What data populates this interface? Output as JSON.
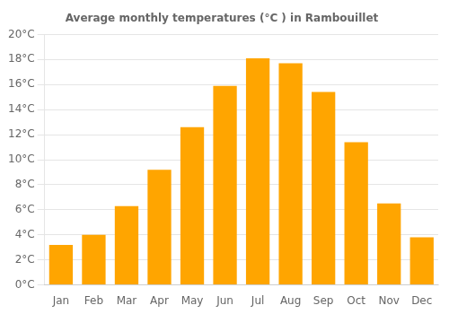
{
  "chart_data": {
    "type": "bar",
    "title": "Average monthly temperatures (°C ) in Rambouillet",
    "categories": [
      "Jan",
      "Feb",
      "Mar",
      "Apr",
      "May",
      "Jun",
      "Jul",
      "Aug",
      "Sep",
      "Oct",
      "Nov",
      "Dec"
    ],
    "values": [
      3.2,
      4.0,
      6.3,
      9.2,
      12.6,
      15.9,
      18.1,
      17.7,
      15.4,
      11.4,
      6.5,
      3.8
    ],
    "color": "#FFA500",
    "ylim": [
      0,
      20
    ],
    "yticks": [
      {
        "value": 0,
        "label": "0°C"
      },
      {
        "value": 2,
        "label": "2°C"
      },
      {
        "value": 4,
        "label": "4°C"
      },
      {
        "value": 6,
        "label": "6°C"
      },
      {
        "value": 8,
        "label": "8°C"
      },
      {
        "value": 10,
        "label": "10°C"
      },
      {
        "value": 12,
        "label": "12°C"
      },
      {
        "value": 14,
        "label": "14°C"
      },
      {
        "value": 16,
        "label": "16°C"
      },
      {
        "value": 18,
        "label": "18°C"
      },
      {
        "value": 20,
        "label": "20°C"
      }
    ],
    "grid": true
  }
}
